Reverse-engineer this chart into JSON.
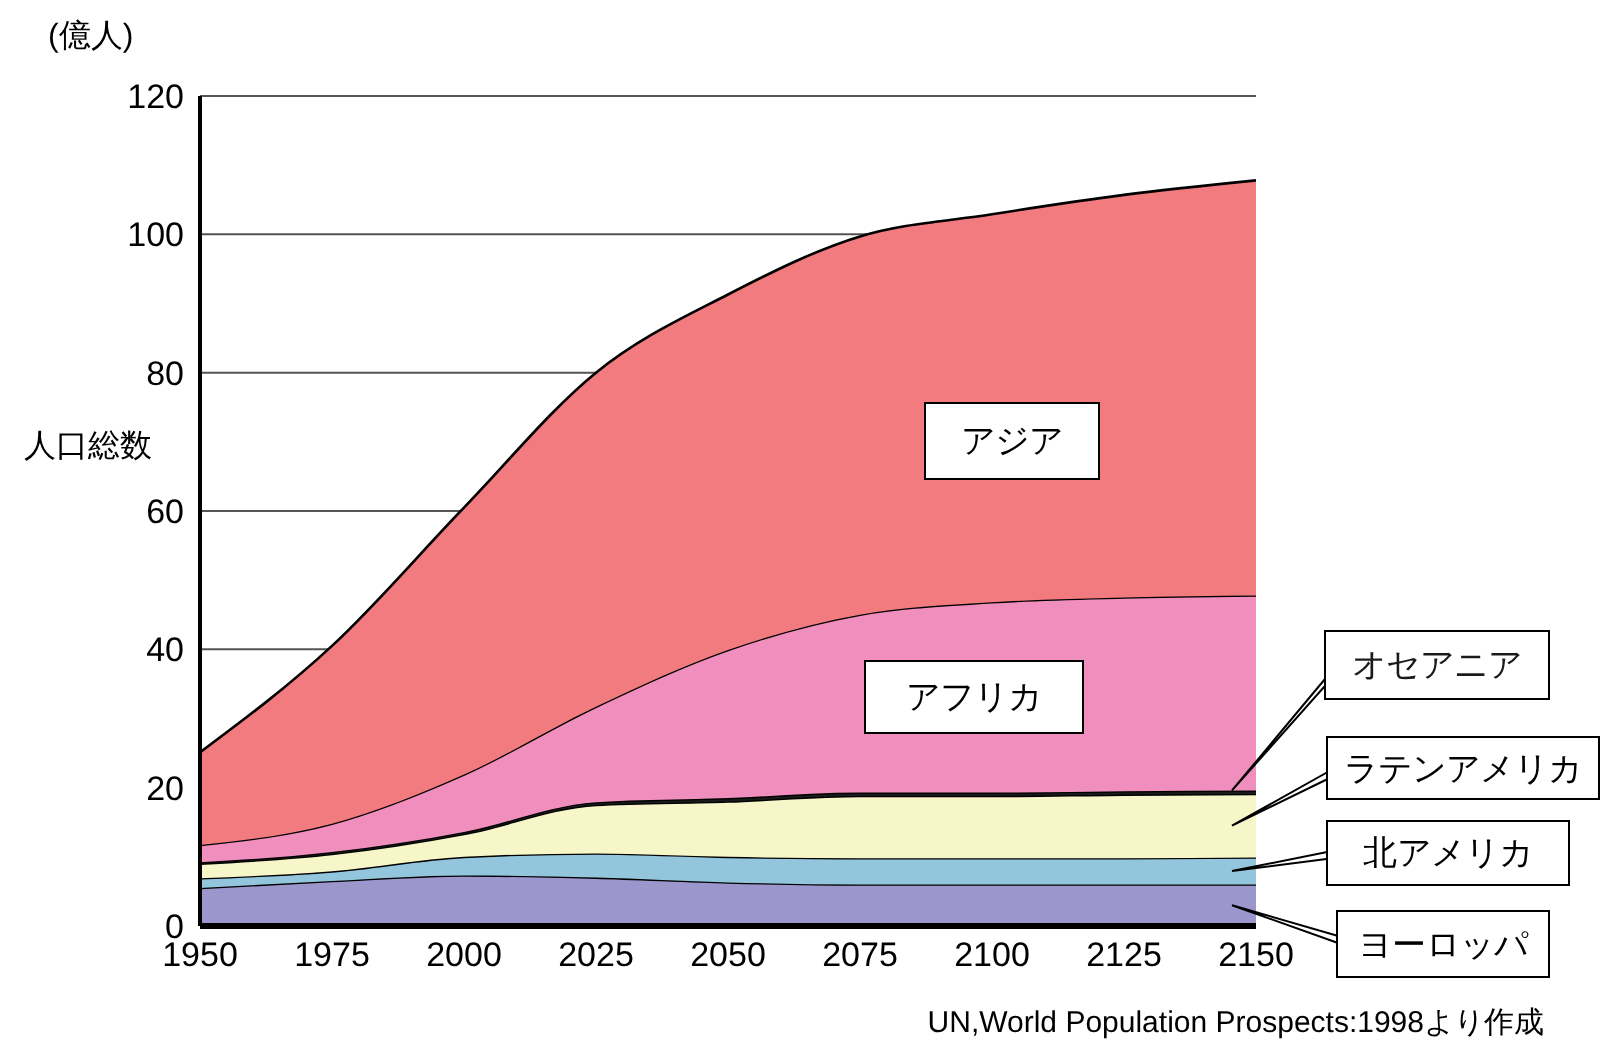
{
  "chart_data": {
    "type": "area",
    "stacked": true,
    "ylabel": "人口総数",
    "annotations": [
      "(億人)",
      "UN,World Population Prospects:1998より作成"
    ],
    "x": [
      1950,
      1975,
      2000,
      2025,
      2050,
      2075,
      2100,
      2125,
      2150
    ],
    "xlim": [
      1950,
      2150
    ],
    "xticks": [
      1950,
      1975,
      2000,
      2025,
      2050,
      2075,
      2100,
      2125,
      2150
    ],
    "legend": "right",
    "ylim": [
      0,
      120
    ],
    "yticks": [
      0,
      20,
      40,
      60,
      80,
      100,
      120
    ],
    "grid": "y",
    "series": [
      {
        "name": "ヨーロッパ",
        "color": "#9b96cc",
        "values": [
          5.5,
          6.5,
          7.3,
          7.0,
          6.3,
          6.0,
          6.0,
          6.0,
          6.0
        ]
      },
      {
        "name": "北アメリカ",
        "color": "#93c6dd",
        "values": [
          1.4,
          1.4,
          2.7,
          3.5,
          3.7,
          3.8,
          3.8,
          3.8,
          3.9
        ]
      },
      {
        "name": "ラテンアメリカ",
        "color": "#f6f6c8",
        "values": [
          2.1,
          2.5,
          3.3,
          7.0,
          8.0,
          9.0,
          9.0,
          9.2,
          9.2
        ]
      },
      {
        "name": "オセアニア",
        "color": "#1a1a1a",
        "values": [
          0.2,
          0.3,
          0.3,
          0.4,
          0.5,
          0.5,
          0.5,
          0.5,
          0.5
        ]
      },
      {
        "name": "アフリカ",
        "color": "#f08fbd",
        "values": [
          2.5,
          4.1,
          8.3,
          13.8,
          21.4,
          25.7,
          27.5,
          28.0,
          28.2
        ]
      },
      {
        "name": "アジア",
        "color": "#f27b7f",
        "values": [
          13.4,
          25.7,
          38.6,
          48.3,
          51.4,
          54.7,
          56.1,
          58.2,
          60.0
        ]
      }
    ]
  }
}
